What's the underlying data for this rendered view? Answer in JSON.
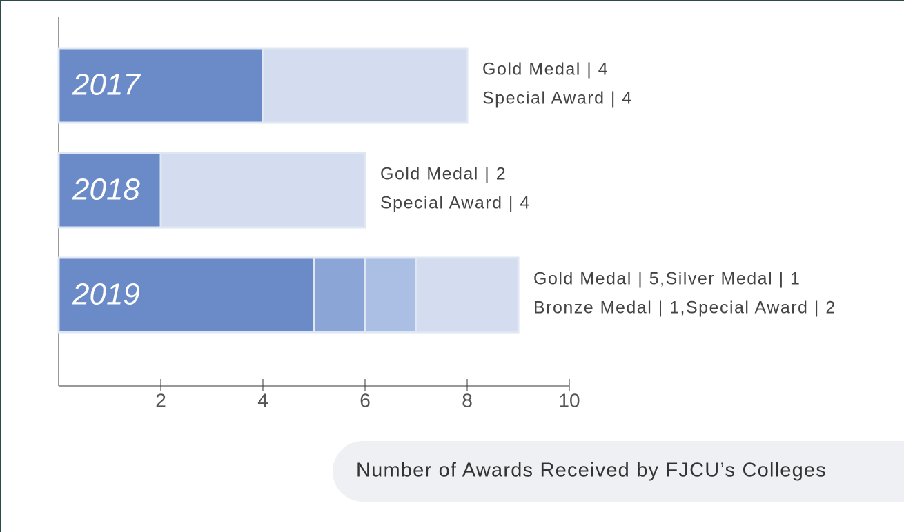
{
  "chart_data": {
    "type": "bar",
    "orientation": "horizontal",
    "stacked": true,
    "title": "Number of Awards Received by FJCU’s Colleges",
    "categories": [
      "2017",
      "2018",
      "2019"
    ],
    "series": [
      {
        "name": "Gold Medal",
        "color": "#6a8bc8",
        "values": [
          4,
          2,
          5
        ]
      },
      {
        "name": "Silver Medal",
        "color": "#8aa5d6",
        "values": [
          null,
          null,
          1
        ]
      },
      {
        "name": "Bronze Medal",
        "color": "#abbee3",
        "values": [
          null,
          null,
          1
        ]
      },
      {
        "name": "Special Award",
        "color": "#d3ddef",
        "values": [
          4,
          4,
          2
        ]
      }
    ],
    "annotations": [
      [
        "Gold Medal  |  4",
        "Special Award |  4"
      ],
      [
        "Gold Medal  |  2",
        "Special Award |  4"
      ],
      [
        "Gold Medal |  5,Silver Medal |  1",
        "Bronze Medal |  1,Special Award |  2"
      ]
    ],
    "xlim": [
      0,
      10
    ],
    "xticks": [
      2,
      4,
      6,
      8,
      10
    ]
  }
}
